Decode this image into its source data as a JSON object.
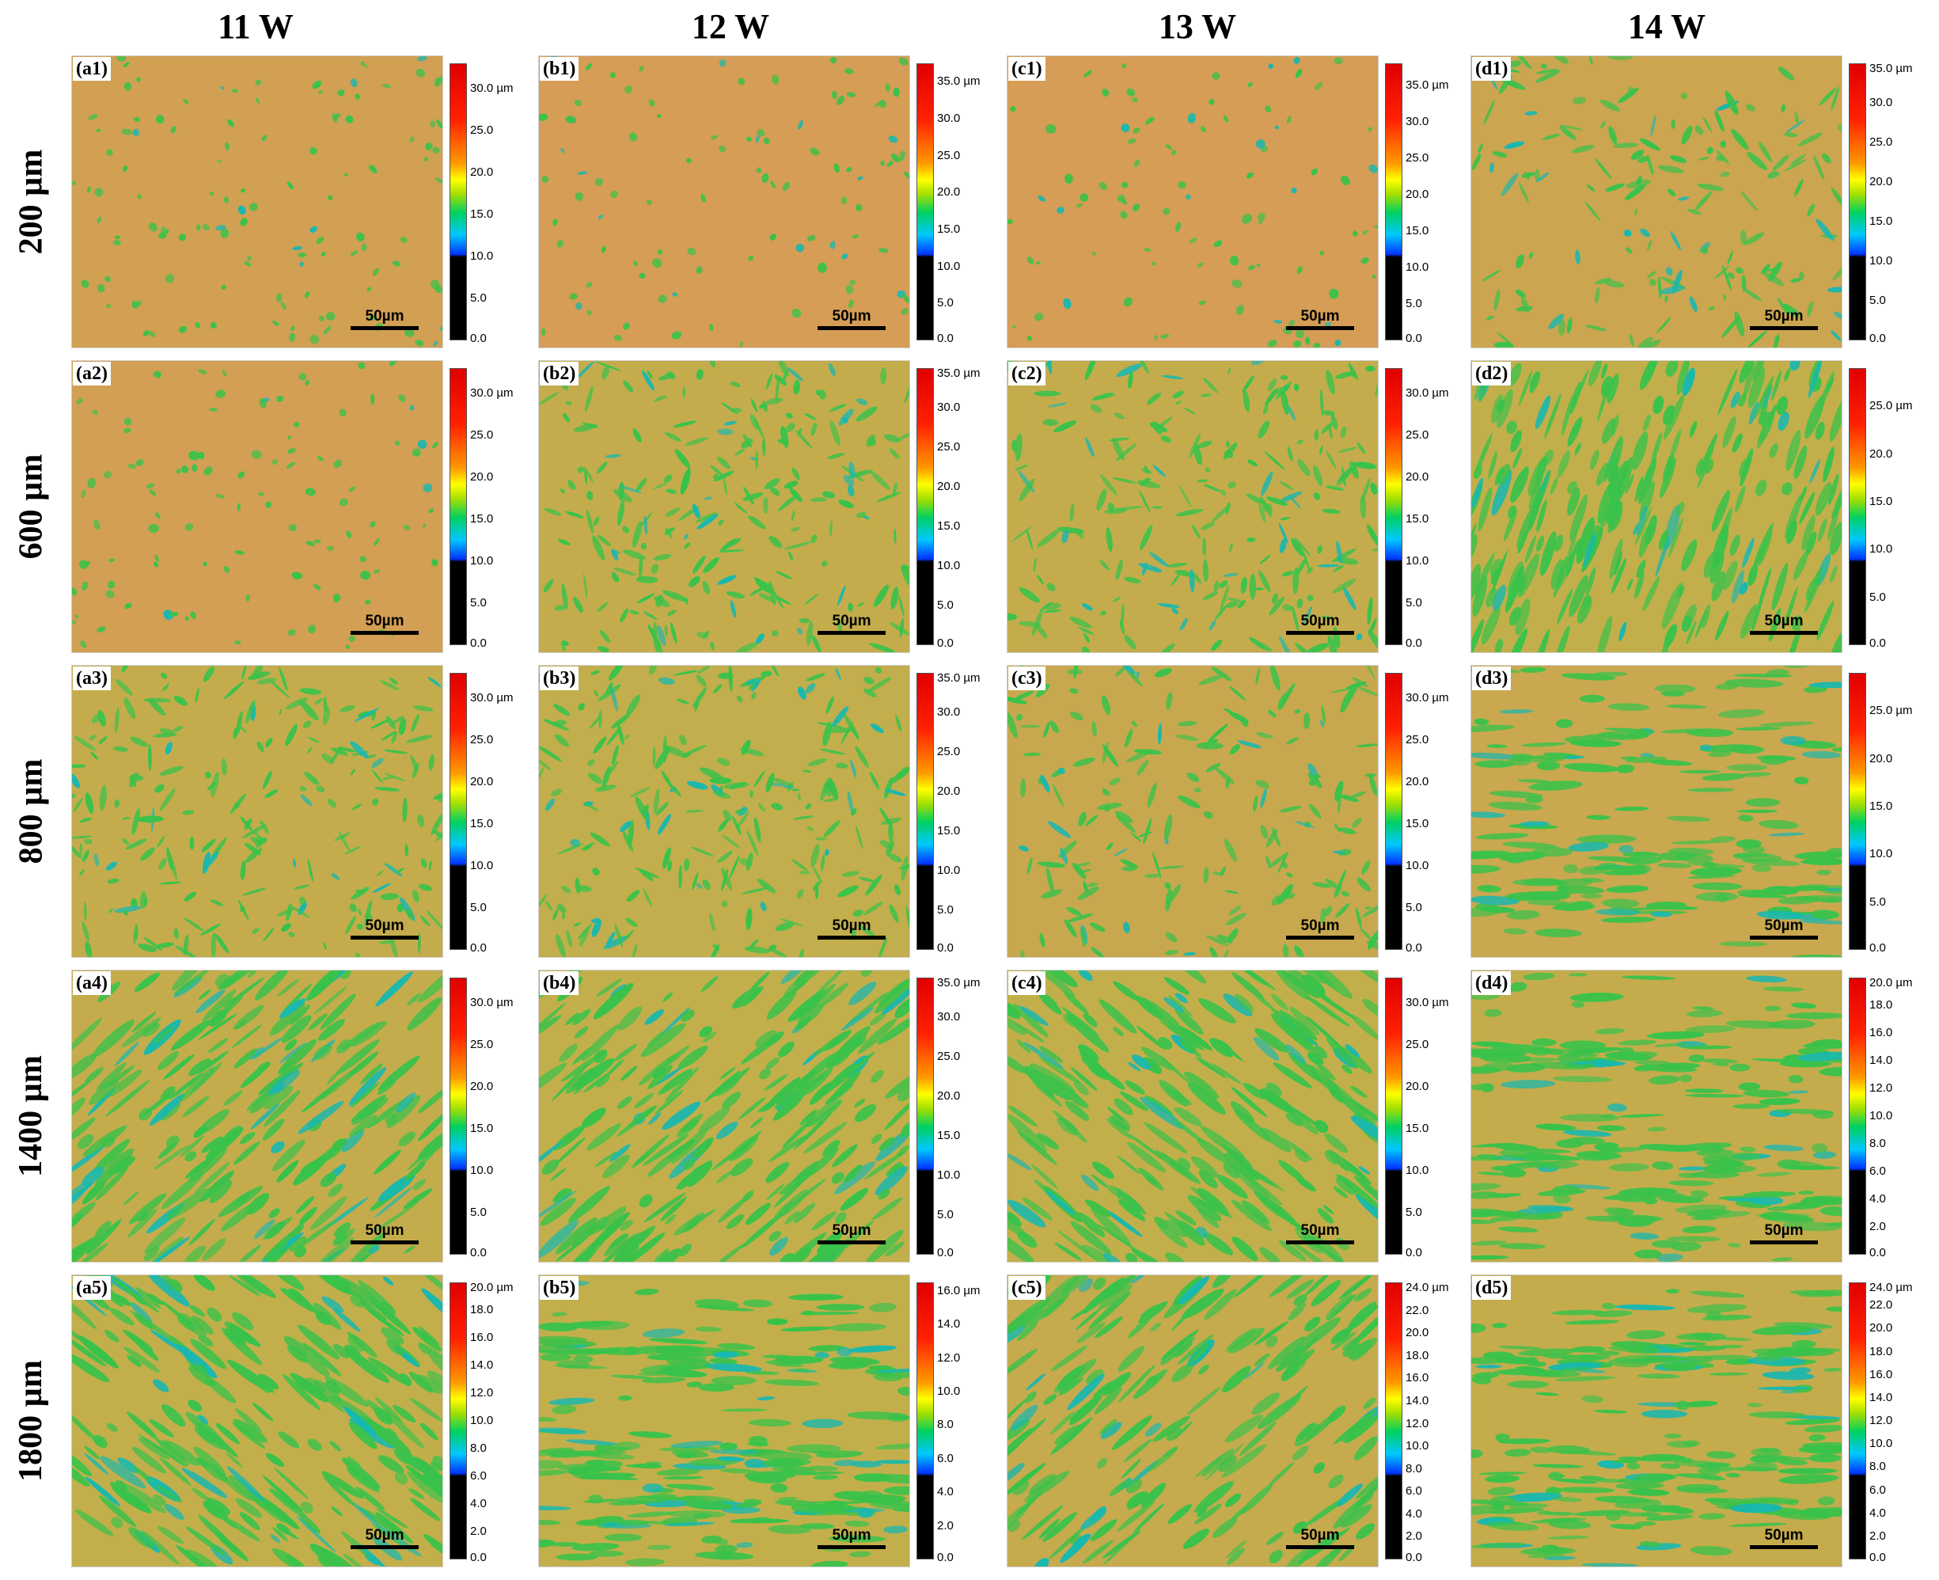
{
  "columns": [
    "11 W",
    "12 W",
    "13 W",
    "14 W"
  ],
  "rows": [
    "200 µm",
    "600 µm",
    "800 µm",
    "1400 µm",
    "1800 µm"
  ],
  "scale_bar_label": "50µm",
  "colors": {
    "base": "#d99a58",
    "mid": "#a9c43e",
    "green": "#39c24a",
    "cyan": "#18b8b0",
    "colormap": [
      "#000000",
      "#0033ff",
      "#00c8ff",
      "#00d060",
      "#a8e000",
      "#ffff00",
      "#ff9900",
      "#ff2000",
      "#e00000"
    ]
  },
  "panels": [
    {
      "id": "a1",
      "label": "(a1)",
      "coverage": 0.14,
      "pattern": "dots",
      "ticks": [
        "30.0 µm",
        "25.0",
        "20.0",
        "15.0",
        "10.0",
        "5.0",
        "0.0"
      ],
      "top": "33.0"
    },
    {
      "id": "b1",
      "label": "(b1)",
      "coverage": 0.08,
      "pattern": "dots",
      "ticks": [
        "35.0 µm",
        "30.0",
        "25.0",
        "20.0",
        "15.0",
        "10.0",
        "5.0",
        "0.0"
      ],
      "top": "37.5"
    },
    {
      "id": "c1",
      "label": "(c1)",
      "coverage": 0.08,
      "pattern": "dots",
      "ticks": [
        "35.0 µm",
        "30.0",
        "25.0",
        "20.0",
        "15.0",
        "10.0",
        "5.0",
        "0.0"
      ],
      "top": "38.0"
    },
    {
      "id": "d1",
      "label": "(d1)",
      "coverage": 0.25,
      "pattern": "net",
      "ticks": [
        "35.0 µm",
        "30.0",
        "25.0",
        "20.0",
        "15.0",
        "10.0",
        "5.0",
        "0.0"
      ],
      "top": "35.0"
    },
    {
      "id": "a2",
      "label": "(a2)",
      "coverage": 0.12,
      "pattern": "dots",
      "ticks": [
        "30.0 µm",
        "25.0",
        "20.0",
        "15.0",
        "10.0",
        "5.0",
        "0.0"
      ],
      "top": "33.0"
    },
    {
      "id": "b2",
      "label": "(b2)",
      "coverage": 0.4,
      "pattern": "net",
      "ticks": [
        "35.0 µm",
        "30.0",
        "25.0",
        "20.0",
        "15.0",
        "10.0",
        "5.0",
        "0.0"
      ],
      "top": "35.0"
    },
    {
      "id": "c2",
      "label": "(c2)",
      "coverage": 0.4,
      "pattern": "net",
      "ticks": [
        "30.0 µm",
        "25.0",
        "20.0",
        "15.0",
        "10.0",
        "5.0",
        "0.0"
      ],
      "top": "33.0"
    },
    {
      "id": "d2",
      "label": "(d2)",
      "coverage": 0.45,
      "pattern": "streak-v",
      "ticks": [
        "25.0 µm",
        "20.0",
        "15.0",
        "10.0",
        "5.0",
        "0.0"
      ],
      "top": "29.0"
    },
    {
      "id": "a3",
      "label": "(a3)",
      "coverage": 0.4,
      "pattern": "net",
      "ticks": [
        "30.0 µm",
        "25.0",
        "20.0",
        "15.0",
        "10.0",
        "5.0",
        "0.0"
      ],
      "top": "33.0"
    },
    {
      "id": "b3",
      "label": "(b3)",
      "coverage": 0.42,
      "pattern": "net",
      "ticks": [
        "35.0 µm",
        "30.0",
        "25.0",
        "20.0",
        "15.0",
        "10.0",
        "5.0",
        "0.0"
      ],
      "top": "35.0"
    },
    {
      "id": "c3",
      "label": "(c3)",
      "coverage": 0.32,
      "pattern": "net",
      "ticks": [
        "30.0 µm",
        "25.0",
        "20.0",
        "15.0",
        "10.0",
        "5.0",
        "0.0"
      ],
      "top": "33.0"
    },
    {
      "id": "d3",
      "label": "(d3)",
      "coverage": 0.3,
      "pattern": "streak-h",
      "ticks": [
        "25.0 µm",
        "20.0",
        "15.0",
        "10.0",
        "5.0",
        "0.0"
      ],
      "top": "29.0"
    },
    {
      "id": "a4",
      "label": "(a4)",
      "coverage": 0.4,
      "pattern": "streak-d",
      "ticks": [
        "30.0 µm",
        "25.0",
        "20.0",
        "15.0",
        "10.0",
        "5.0",
        "0.0"
      ],
      "top": "33.0"
    },
    {
      "id": "b4",
      "label": "(b4)",
      "coverage": 0.45,
      "pattern": "streak-d",
      "ticks": [
        "35.0 µm",
        "30.0",
        "25.0",
        "20.0",
        "15.0",
        "10.0",
        "5.0",
        "0.0"
      ],
      "top": "35.0"
    },
    {
      "id": "c4",
      "label": "(c4)",
      "coverage": 0.45,
      "pattern": "streak-d2",
      "ticks": [
        "30.0 µm",
        "25.0",
        "20.0",
        "15.0",
        "10.0",
        "5.0",
        "0.0"
      ],
      "top": "33.0"
    },
    {
      "id": "d4",
      "label": "(d4)",
      "coverage": 0.4,
      "pattern": "streak-h",
      "ticks": [
        "20.0 µm",
        "18.0",
        "16.0",
        "14.0",
        "12.0",
        "10.0",
        "8.0",
        "6.0",
        "4.0",
        "2.0",
        "0.0"
      ],
      "top": "20.0"
    },
    {
      "id": "a5",
      "label": "(a5)",
      "coverage": 0.45,
      "pattern": "streak-d2",
      "ticks": [
        "20.0 µm",
        "18.0",
        "16.0",
        "14.0",
        "12.0",
        "10.0",
        "8.0",
        "6.0",
        "4.0",
        "2.0",
        "0.0"
      ],
      "top": "20.0"
    },
    {
      "id": "b5",
      "label": "(b5)",
      "coverage": 0.45,
      "pattern": "streak-h",
      "ticks": [
        "16.0 µm",
        "14.0",
        "12.0",
        "10.0",
        "8.0",
        "6.0",
        "4.0",
        "2.0",
        "0.0"
      ],
      "top": "16.5"
    },
    {
      "id": "c5",
      "label": "(c5)",
      "coverage": 0.35,
      "pattern": "streak-d",
      "ticks": [
        "24.0 µm",
        "22.0",
        "20.0",
        "18.0",
        "16.0",
        "14.0",
        "12.0",
        "10.0",
        "8.0",
        "6.0",
        "4.0",
        "2.0",
        "0.0"
      ],
      "top": "24.5"
    },
    {
      "id": "d5",
      "label": "(d5)",
      "coverage": 0.4,
      "pattern": "streak-h",
      "ticks": [
        "24.0 µm",
        "22.0",
        "20.0",
        "18.0",
        "16.0",
        "14.0",
        "12.0",
        "10.0",
        "8.0",
        "6.0",
        "4.0",
        "2.0",
        "0.0"
      ],
      "top": "24.0"
    }
  ]
}
